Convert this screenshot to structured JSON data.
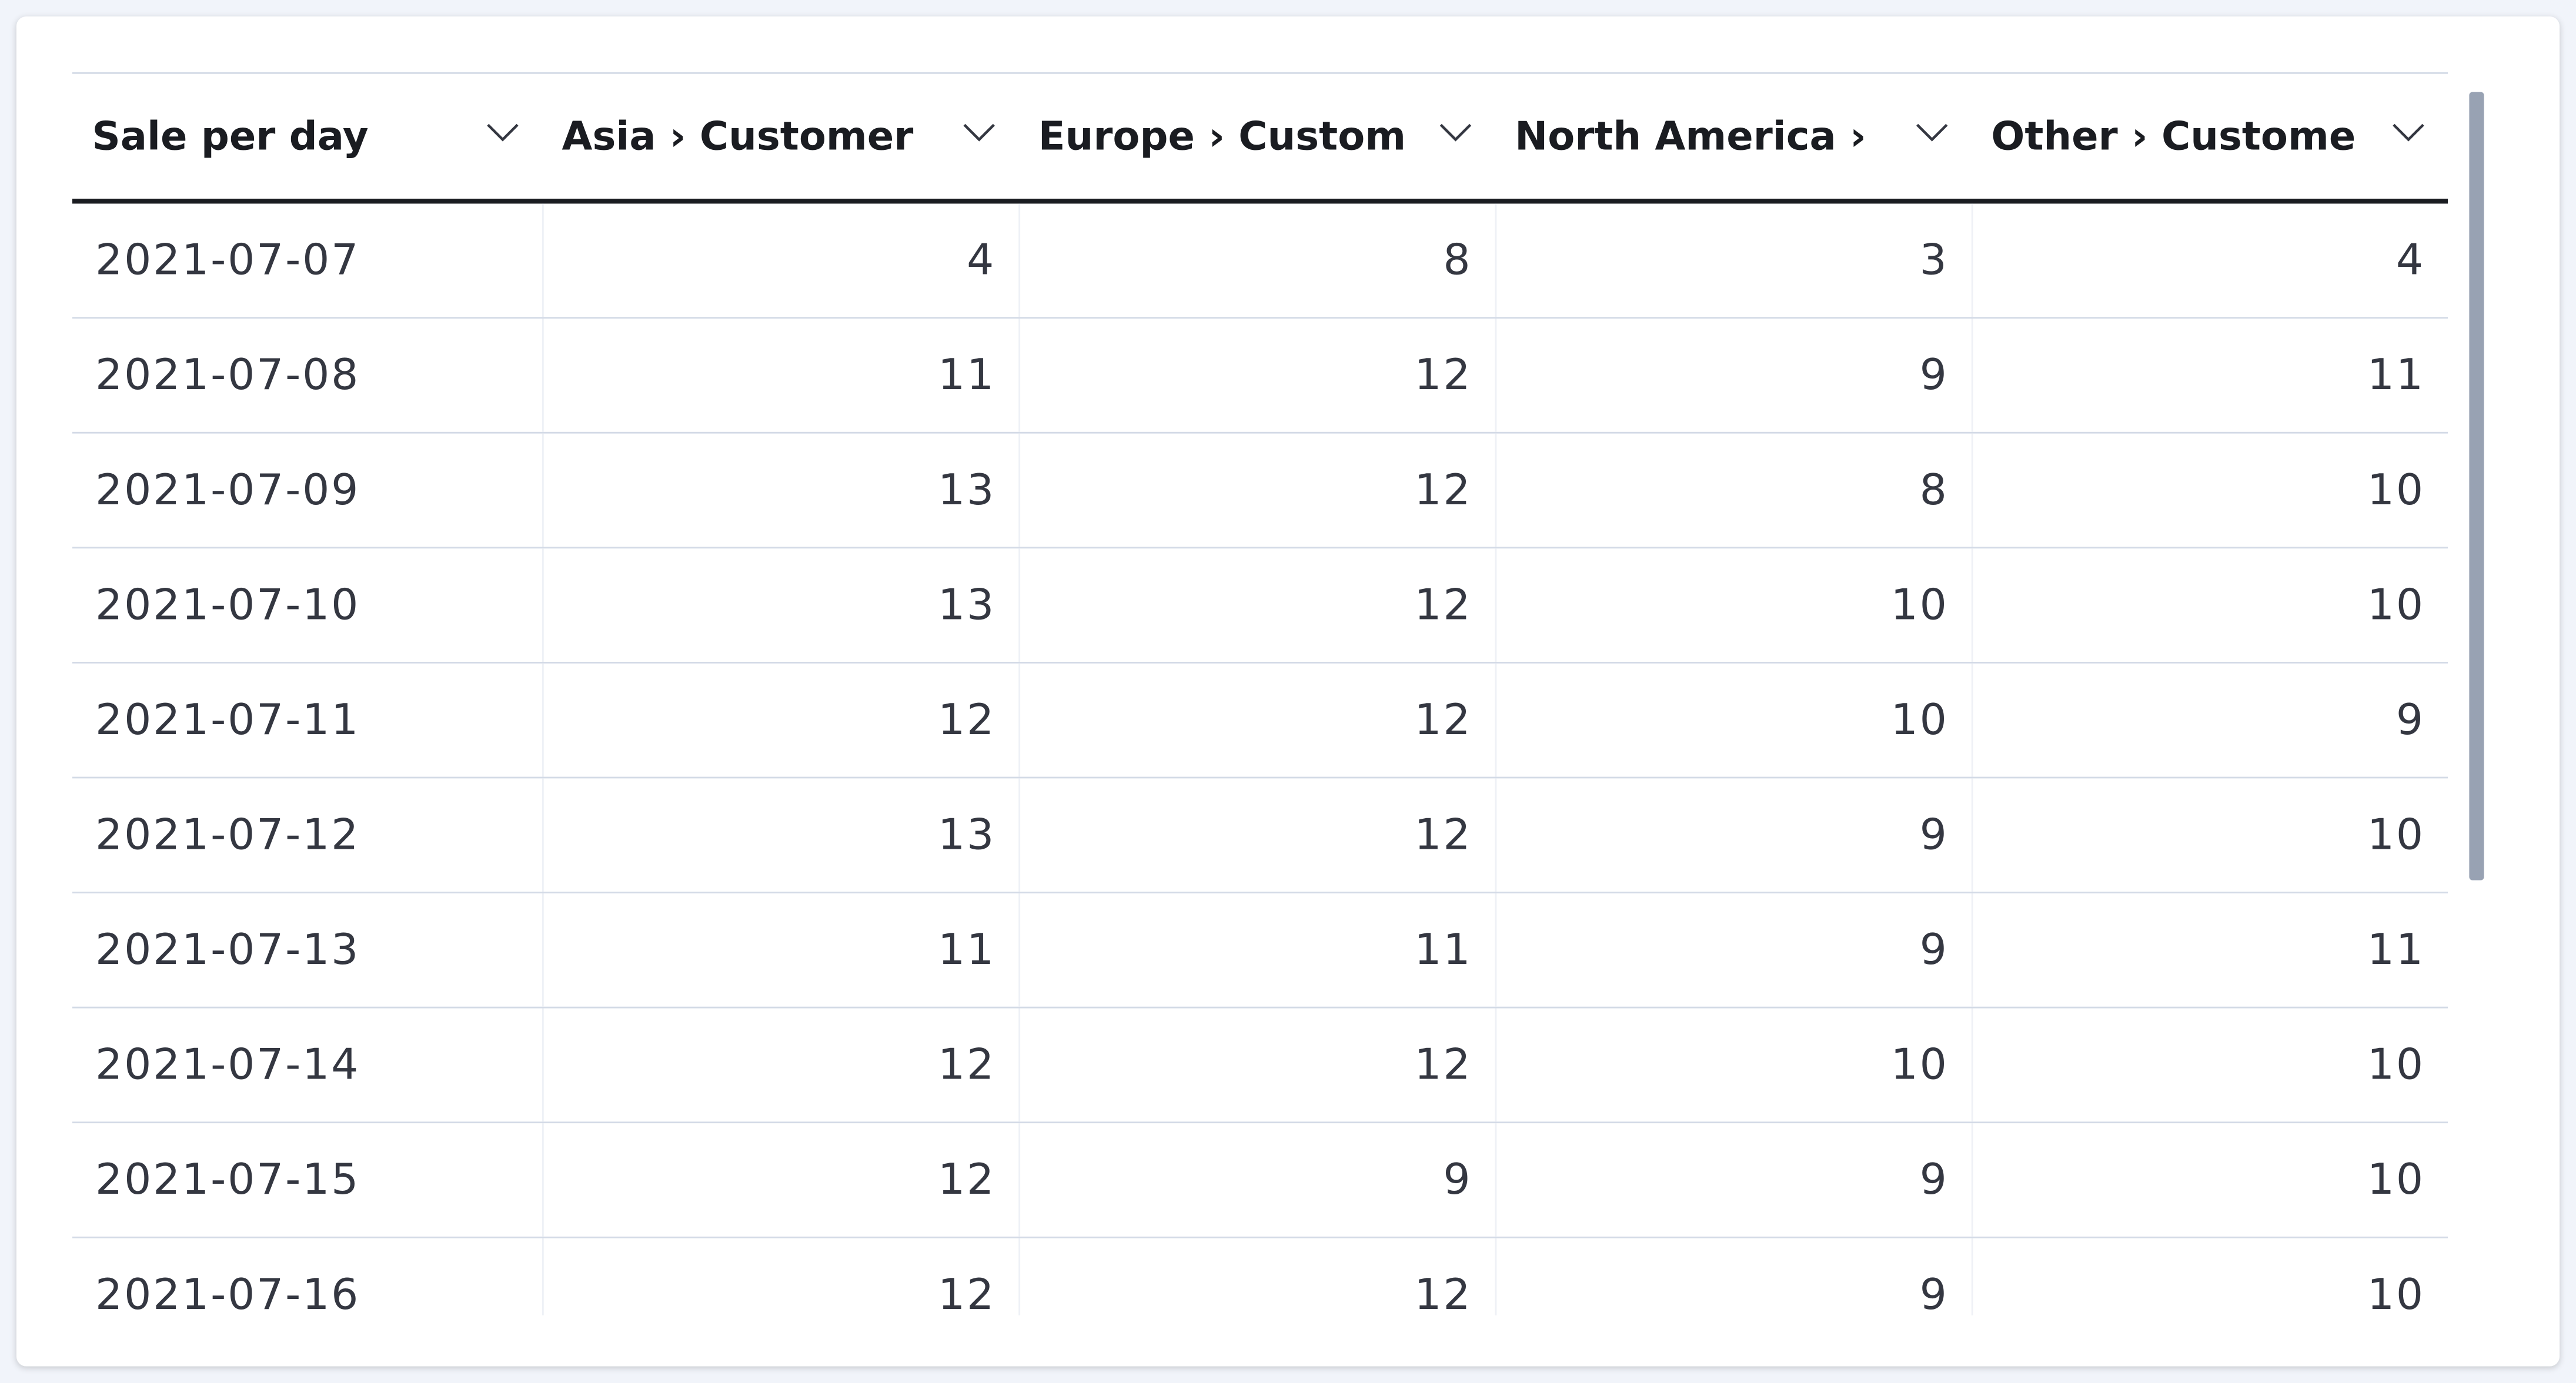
{
  "table": {
    "columns": [
      "Sale per day",
      "Asia › Customer",
      "Europe › Custom",
      "North America ›",
      "Other › Custome"
    ],
    "rows": [
      [
        "2021-07-07",
        4,
        8,
        3,
        4
      ],
      [
        "2021-07-08",
        11,
        12,
        9,
        11
      ],
      [
        "2021-07-09",
        13,
        12,
        8,
        10
      ],
      [
        "2021-07-10",
        13,
        12,
        10,
        10
      ],
      [
        "2021-07-11",
        12,
        12,
        10,
        9
      ],
      [
        "2021-07-12",
        13,
        12,
        9,
        10
      ],
      [
        "2021-07-13",
        11,
        11,
        9,
        11
      ],
      [
        "2021-07-14",
        12,
        12,
        10,
        10
      ],
      [
        "2021-07-15",
        12,
        9,
        9,
        10
      ],
      [
        "2021-07-16",
        12,
        12,
        9,
        10
      ]
    ]
  }
}
